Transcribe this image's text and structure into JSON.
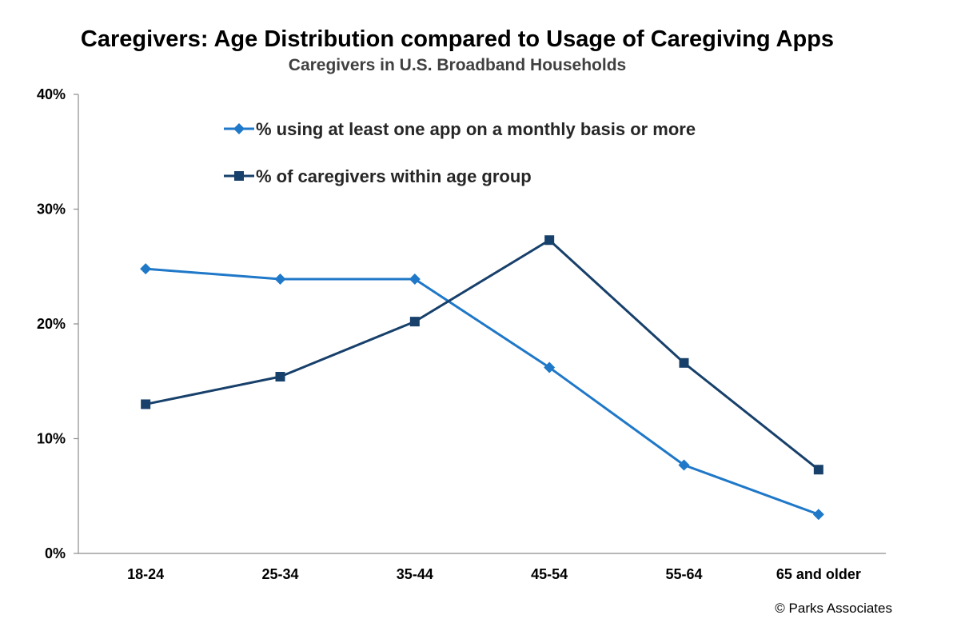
{
  "chart_data": {
    "type": "line",
    "title": "Caregivers: Age Distribution compared to Usage of Caregiving Apps",
    "subtitle": "Caregivers in U.S. Broadband Households",
    "categories": [
      "18-24",
      "25-34",
      "35-44",
      "45-54",
      "55-64",
      "65 and older"
    ],
    "ylim": [
      0,
      40
    ],
    "yticks": [
      0,
      10,
      20,
      30,
      40
    ],
    "ytick_labels": [
      "0%",
      "10%",
      "20%",
      "30%",
      "40%"
    ],
    "grid": false,
    "legend_position": "top-center",
    "series": [
      {
        "name": "% using at least one app on a monthly basis or more",
        "marker": "diamond",
        "color": "#1f78c8",
        "values": [
          24.8,
          23.9,
          23.9,
          16.2,
          7.7,
          3.4
        ]
      },
      {
        "name": "% of caregivers within age group",
        "marker": "square",
        "color": "#17406b",
        "values": [
          13.0,
          15.4,
          20.2,
          27.3,
          16.6,
          7.3
        ]
      }
    ],
    "credit": "© Parks Associates"
  }
}
